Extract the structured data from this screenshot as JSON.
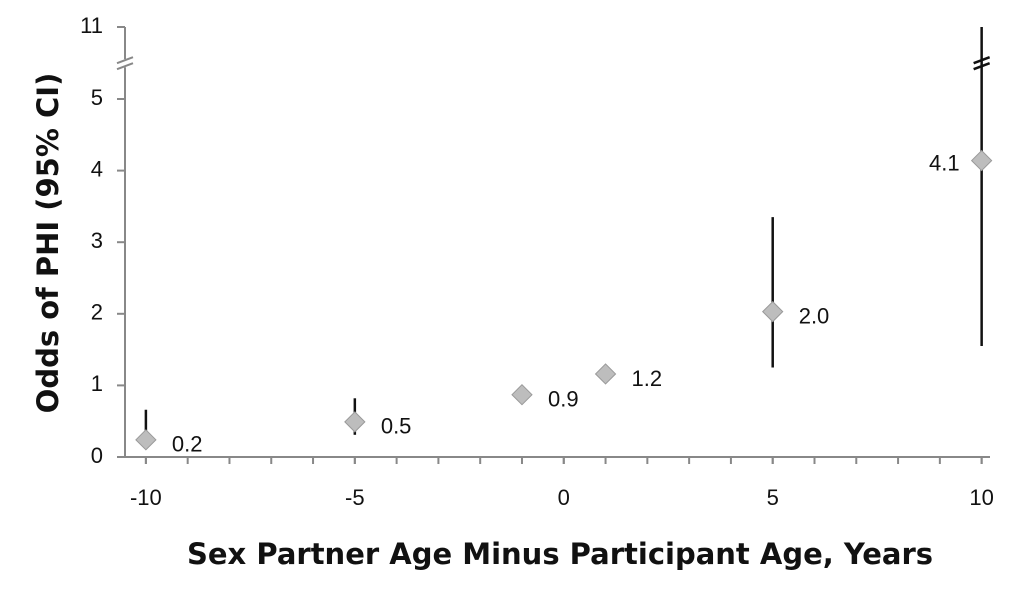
{
  "chart_data": {
    "type": "scatter",
    "x_label": "Sex Partner Age Minus Participant Age, Years",
    "y_label": "Odds of PHI (95% CI)",
    "x": [
      -10,
      -5,
      -1,
      1,
      5,
      10
    ],
    "values": [
      0.24,
      0.49,
      0.87,
      1.16,
      2.03,
      4.14
    ],
    "value_labels": [
      "0.2",
      "0.5",
      "0.9",
      "1.2",
      "2.0",
      "4.1"
    ],
    "ci_low": [
      0.22,
      0.31,
      null,
      null,
      1.25,
      1.55
    ],
    "ci_high": [
      0.66,
      0.82,
      null,
      null,
      3.35,
      11
    ],
    "color": "#bdbdbd",
    "xlim": [
      -10.5,
      10.2
    ],
    "xticks": [
      -10,
      -5,
      0,
      5,
      10
    ],
    "xminor": 1,
    "ylim": [
      0,
      11
    ],
    "yticks": [
      0,
      1,
      2,
      3,
      4,
      5,
      11
    ],
    "y_break": 5.5
  }
}
